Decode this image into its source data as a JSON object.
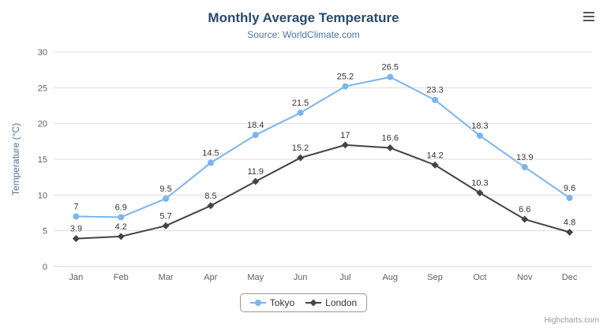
{
  "header": {
    "title": "Monthly Average Temperature",
    "subtitle": "Source: WorldClimate.com"
  },
  "credits": "Highcharts.com",
  "theme": {
    "background": "#ffffff",
    "title_color": "#274b6d",
    "subtitle_color": "#4d759e",
    "axis_title_color": "#4d759e",
    "tick_color": "#606060",
    "grid_color": "#dcdcdc",
    "axis_line_color": "#ccd6eb",
    "label_color": "#333333",
    "legend_border_color": "#999999",
    "credits_color": "#999999"
  },
  "chart_data": {
    "type": "line",
    "title": "Monthly Average Temperature",
    "subtitle": "Source: WorldClimate.com",
    "xlabel": "",
    "ylabel": "Temperature (°C)",
    "ylim": [
      0,
      30
    ],
    "yticks": [
      0,
      5,
      10,
      15,
      20,
      25,
      30
    ],
    "grid": true,
    "legend_position": "bottom",
    "data_labels": true,
    "categories": [
      "Jan",
      "Feb",
      "Mar",
      "Apr",
      "May",
      "Jun",
      "Jul",
      "Aug",
      "Sep",
      "Oct",
      "Nov",
      "Dec"
    ],
    "series": [
      {
        "name": "Tokyo",
        "color": "#7cb5ec",
        "marker": "circle",
        "values": [
          7,
          6.9,
          9.5,
          14.5,
          18.4,
          21.5,
          25.2,
          26.5,
          23.3,
          18.3,
          13.9,
          9.6
        ]
      },
      {
        "name": "London",
        "color": "#434348",
        "marker": "diamond",
        "values": [
          3.9,
          4.2,
          5.7,
          8.5,
          11.9,
          15.2,
          17,
          16.6,
          14.2,
          10.3,
          6.6,
          4.8
        ]
      }
    ]
  }
}
